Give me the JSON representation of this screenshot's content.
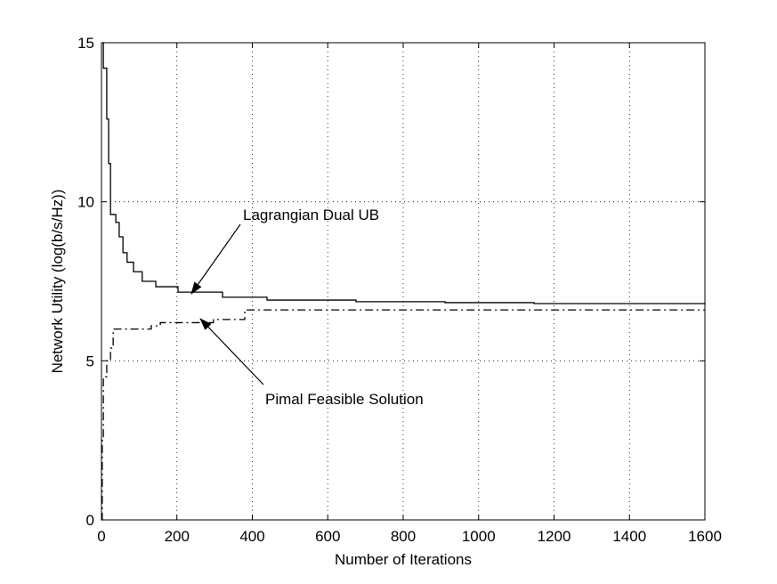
{
  "chart_data": {
    "type": "line",
    "xlabel": "Number of Iterations",
    "ylabel": "Network Utility (log(b/s/Hz))",
    "xlim": [
      0,
      1600
    ],
    "ylim": [
      0,
      15
    ],
    "xticks": [
      0,
      200,
      400,
      600,
      800,
      1000,
      1200,
      1400,
      1600
    ],
    "yticks": [
      0,
      5,
      10,
      15
    ],
    "grid": true,
    "step": true,
    "series": [
      {
        "name": "Lagrangian Dual UB",
        "color": "#000000",
        "style": "solid",
        "x": [
          2,
          5,
          14,
          19,
          24,
          38,
          47,
          57,
          68,
          85,
          108,
          144,
          203,
          321,
          439,
          675,
          911,
          1147,
          1600
        ],
        "values": [
          15,
          14.2,
          12.6,
          11.2,
          9.6,
          9.35,
          8.9,
          8.4,
          8.1,
          7.8,
          7.5,
          7.33,
          7.16,
          7.0,
          6.91,
          6.86,
          6.83,
          6.8,
          6.77
        ]
      },
      {
        "name": "Pimal Feasible Solution",
        "color": "#000000",
        "style": "dashdot",
        "x": [
          0,
          2,
          5,
          14,
          24,
          31,
          85,
          132,
          156,
          297,
          380,
          1600
        ],
        "values": [
          0,
          2.5,
          4.5,
          5.0,
          5.4,
          6.0,
          6.0,
          6.1,
          6.2,
          6.3,
          6.6,
          6.6
        ]
      }
    ],
    "annotations": [
      "Lagrangian Dual UB",
      "Pimal Feasible Solution"
    ]
  }
}
